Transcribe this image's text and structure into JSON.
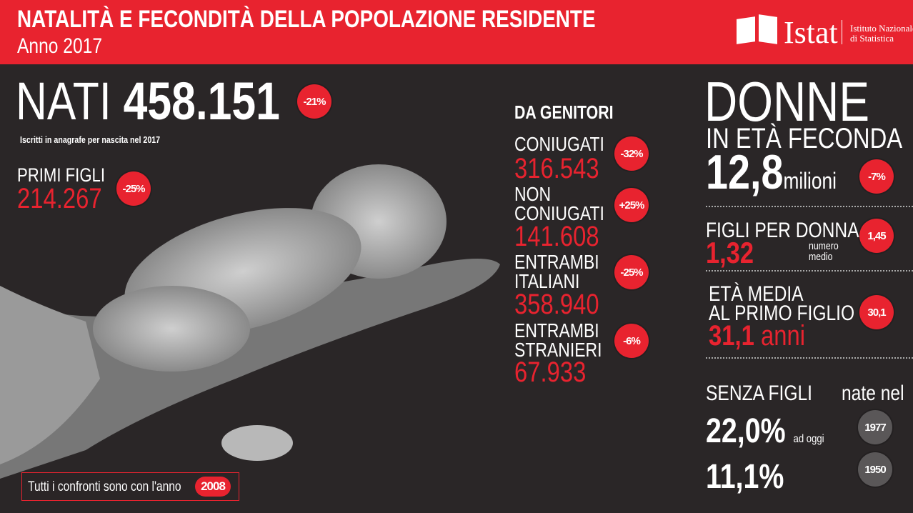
{
  "header": {
    "title": "NATALITÀ E FECONDITÀ DELLA POPOLAZIONE RESIDENTE",
    "subtitle": "Anno 2017",
    "logo": {
      "name": "Istat",
      "line1": "Istituto Nazionale",
      "line2": "di Statistica"
    }
  },
  "colors": {
    "accent": "#e8232f",
    "background": "#2a2627",
    "badge_gray": "#5a5758"
  },
  "nati": {
    "label": "NATI",
    "value": "458.151",
    "change": "-21%",
    "note": "Iscritti in anagrafe per nascita nel 2017"
  },
  "primi_figli": {
    "label": "PRIMI FIGLI",
    "value": "214.267",
    "change": "-25%"
  },
  "genitori": {
    "title": "DA GENITORI",
    "items": [
      {
        "label1": "CONIUGATI",
        "label2": "",
        "value": "316.543",
        "change": "-32%"
      },
      {
        "label1": "NON",
        "label2": "CONIUGATI",
        "value": "141.608",
        "change": "+25%"
      },
      {
        "label1": "ENTRAMBI",
        "label2": "ITALIANI",
        "value": "358.940",
        "change": "-25%"
      },
      {
        "label1": "ENTRAMBI",
        "label2": "STRANIERI",
        "value": "67.933",
        "change": "-6%"
      }
    ]
  },
  "donne": {
    "title": "DONNE",
    "subtitle": "IN ETÀ FECONDA",
    "value": "12,8",
    "unit": "milioni",
    "change": "-7%"
  },
  "figli_per_donna": {
    "label": "FIGLI PER DONNA",
    "value": "1,32",
    "note1": "numero",
    "note2": "medio",
    "compare": "1,45"
  },
  "eta_media": {
    "label1": "ETÀ MEDIA",
    "label2": "AL PRIMO FIGLIO",
    "value": "31,1",
    "unit": "anni",
    "compare": "30,1"
  },
  "senza_figli": {
    "label": "SENZA FIGLI",
    "col_label": "nate nel",
    "rows": [
      {
        "value": "22,0%",
        "note": "ad oggi",
        "year": "1977"
      },
      {
        "value": "11,1%",
        "note": "",
        "year": "1950"
      }
    ]
  },
  "footer": {
    "text": "Tutti i confronti sono con l'anno",
    "year": "2008"
  }
}
